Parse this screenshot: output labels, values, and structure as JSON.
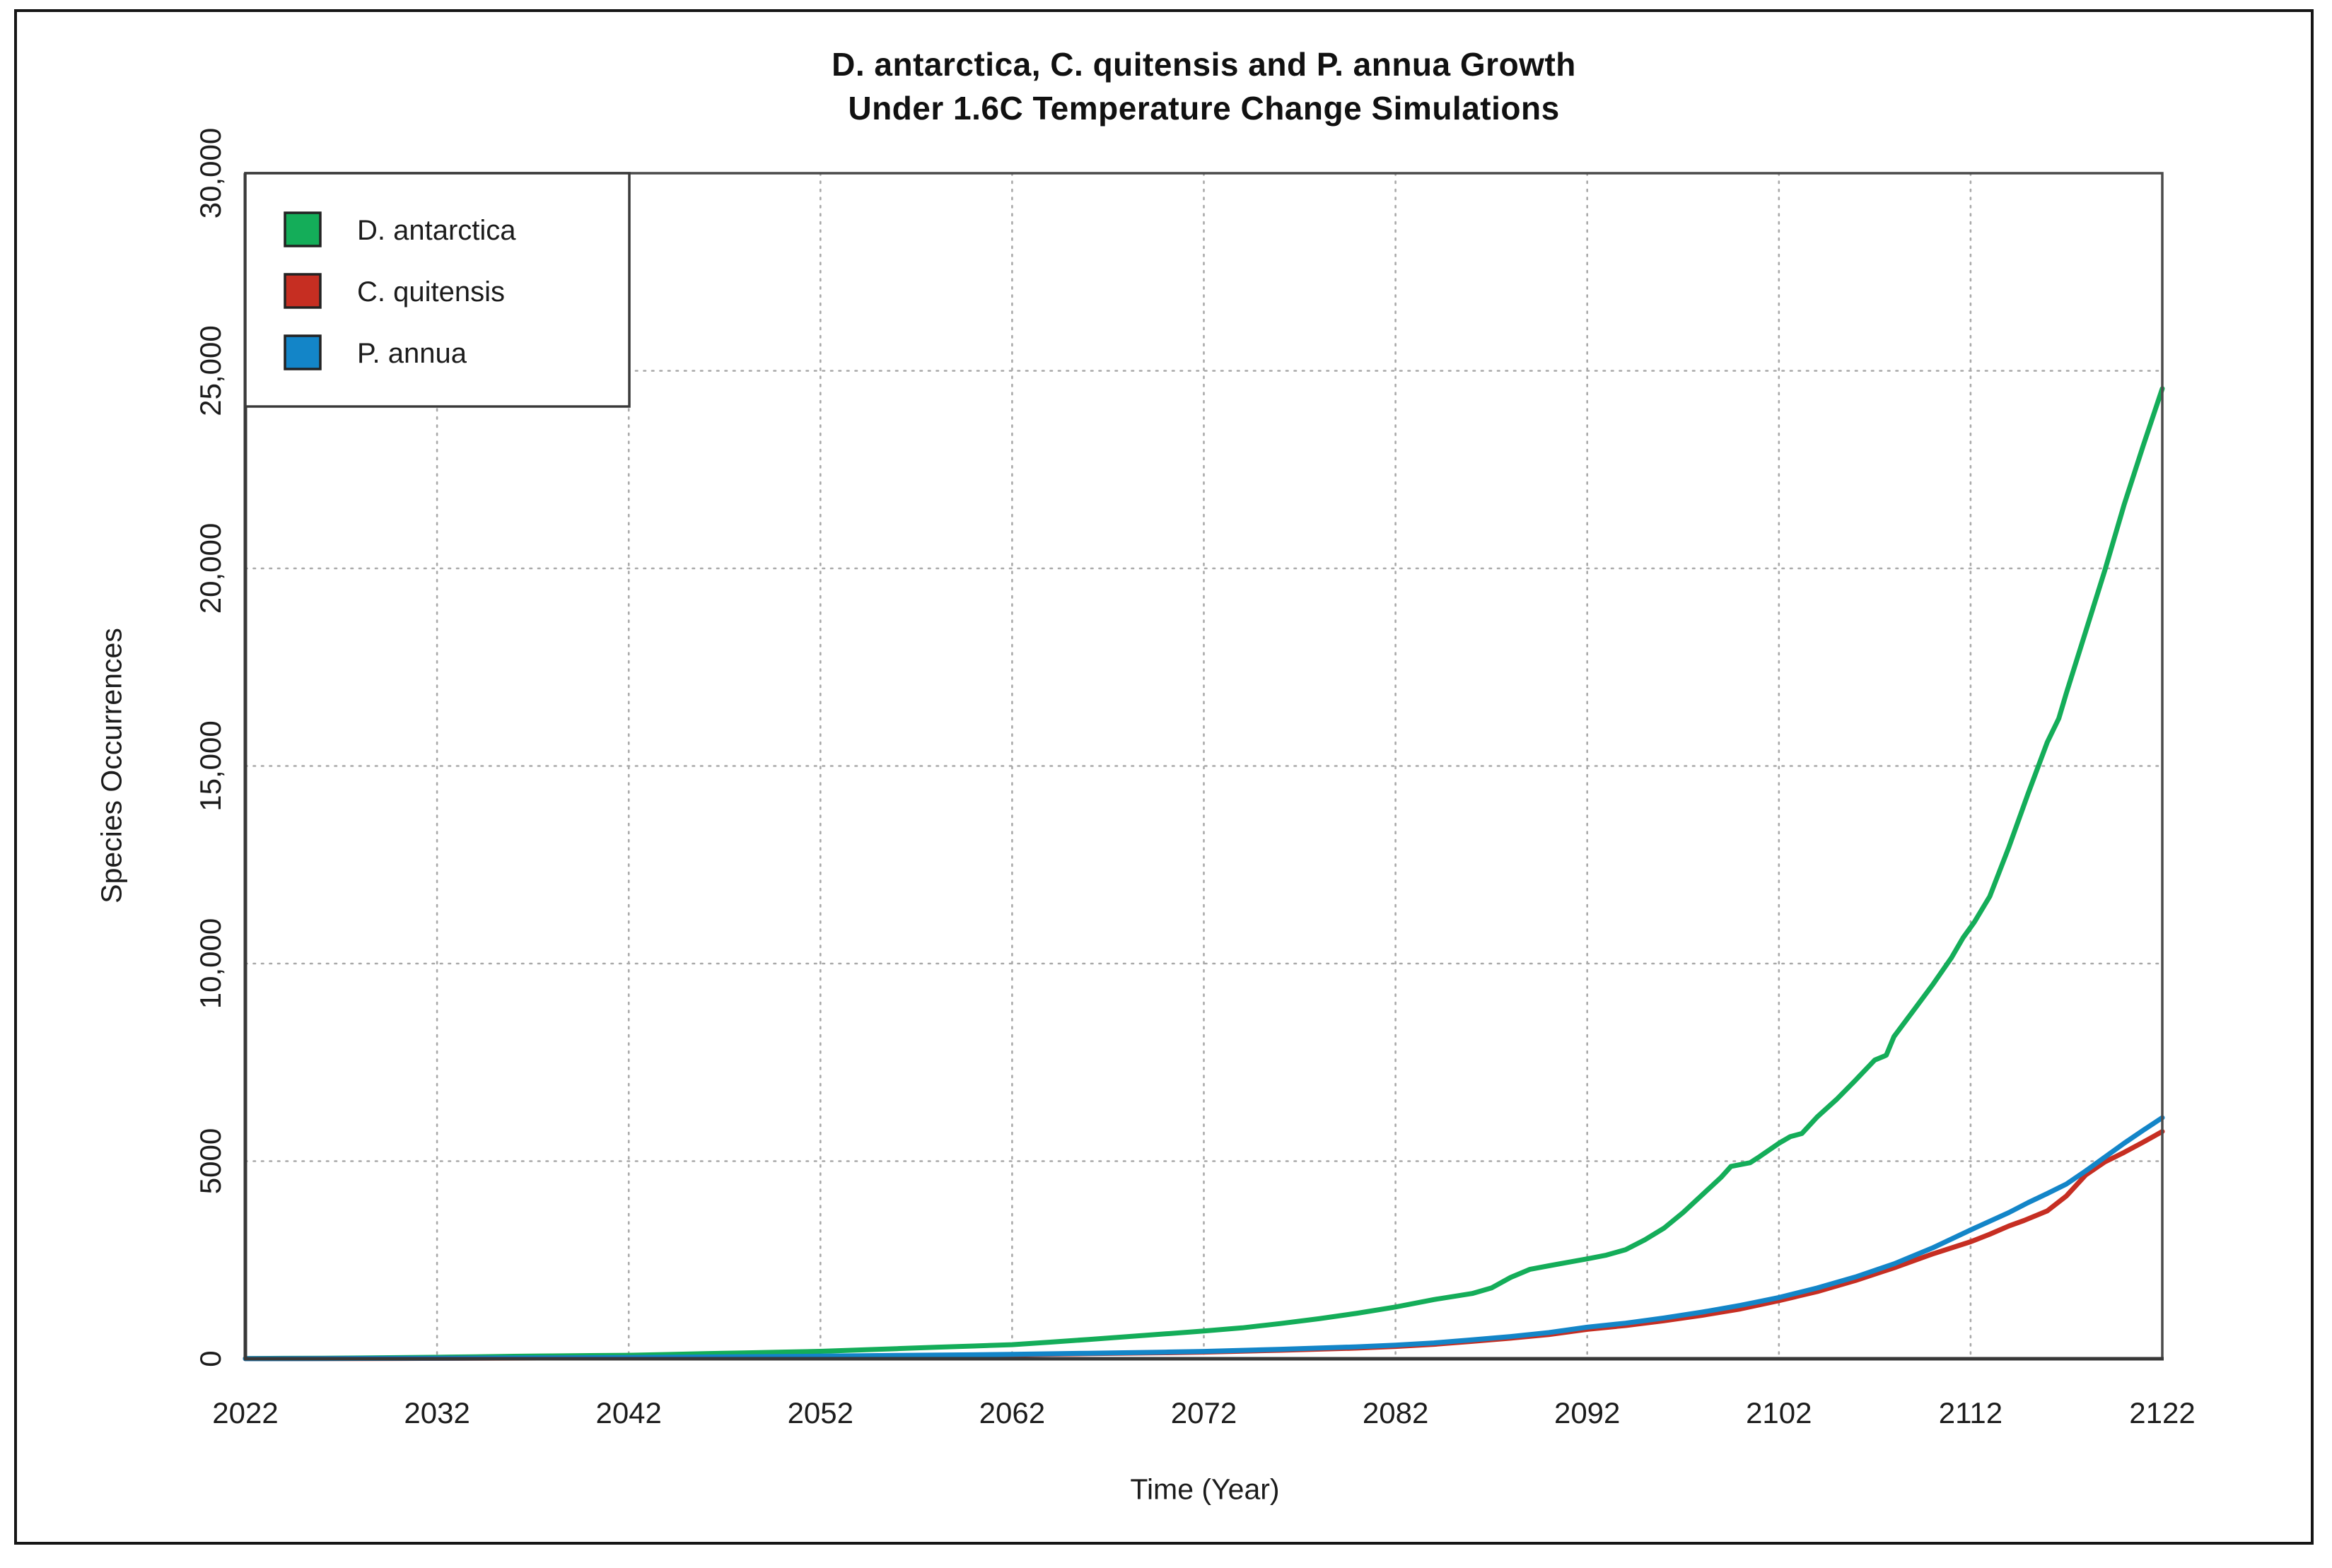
{
  "page": {
    "background": "#FFFFFF",
    "outer_border_color": "#161616"
  },
  "chart_data": {
    "type": "line",
    "title_line1": "D. antarctica, C. quitensis and P. annua Growth",
    "title_line2": "Under 1.6C Temperature Change Simulations",
    "xlabel": "Time (Year)",
    "ylabel": "Species Occurrences",
    "xlim": [
      2022,
      2122
    ],
    "ylim": [
      0,
      30000
    ],
    "grid": true,
    "grid_style": "dotted",
    "legend_position": "top-left",
    "x_ticks": [
      {
        "value": 2022,
        "label": "2022"
      },
      {
        "value": 2032,
        "label": "2032"
      },
      {
        "value": 2042,
        "label": "2042"
      },
      {
        "value": 2052,
        "label": "2052"
      },
      {
        "value": 2062,
        "label": "2062"
      },
      {
        "value": 2072,
        "label": "2072"
      },
      {
        "value": 2082,
        "label": "2082"
      },
      {
        "value": 2092,
        "label": "2092"
      },
      {
        "value": 2102,
        "label": "2102"
      },
      {
        "value": 2112,
        "label": "2112"
      },
      {
        "value": 2122,
        "label": "2122"
      }
    ],
    "y_ticks": [
      {
        "value": 0,
        "label": "0"
      },
      {
        "value": 5000,
        "label": "5000"
      },
      {
        "value": 10000,
        "label": "10,000"
      },
      {
        "value": 15000,
        "label": "15,000"
      },
      {
        "value": 20000,
        "label": "20,000"
      },
      {
        "value": 25000,
        "label": "25,000"
      },
      {
        "value": 30000,
        "label": "30,000"
      }
    ],
    "colors": {
      "grid": "#A9A9A9",
      "frame": "#4A4A4A",
      "axis": "#383838",
      "text": "#1C1C1C",
      "legend_border": "#3A3A3A",
      "swatch_border": "#222222",
      "background": "#FFFFFF"
    },
    "series": [
      {
        "name": "D. antarctica",
        "color": "#14AD59",
        "points": [
          [
            2022,
            5
          ],
          [
            2024,
            10
          ],
          [
            2026,
            15
          ],
          [
            2028,
            20
          ],
          [
            2030,
            28
          ],
          [
            2032,
            38
          ],
          [
            2034,
            50
          ],
          [
            2036,
            62
          ],
          [
            2038,
            72
          ],
          [
            2040,
            80
          ],
          [
            2042,
            88
          ],
          [
            2044,
            108
          ],
          [
            2046,
            128
          ],
          [
            2048,
            148
          ],
          [
            2050,
            168
          ],
          [
            2052,
            188
          ],
          [
            2054,
            222
          ],
          [
            2056,
            256
          ],
          [
            2058,
            290
          ],
          [
            2060,
            322
          ],
          [
            2062,
            356
          ],
          [
            2064,
            420
          ],
          [
            2066,
            488
          ],
          [
            2068,
            560
          ],
          [
            2070,
            630
          ],
          [
            2072,
            702
          ],
          [
            2074,
            782
          ],
          [
            2076,
            890
          ],
          [
            2078,
            1012
          ],
          [
            2080,
            1152
          ],
          [
            2082,
            1310
          ],
          [
            2084,
            1498
          ],
          [
            2086,
            1652
          ],
          [
            2087,
            1790
          ],
          [
            2088,
            2058
          ],
          [
            2089,
            2262
          ],
          [
            2090,
            2352
          ],
          [
            2091,
            2440
          ],
          [
            2092,
            2528
          ],
          [
            2093,
            2622
          ],
          [
            2094,
            2760
          ],
          [
            2095,
            3008
          ],
          [
            2096,
            3302
          ],
          [
            2097,
            3700
          ],
          [
            2098,
            4148
          ],
          [
            2099,
            4600
          ],
          [
            2099.5,
            4868
          ],
          [
            2100.5,
            4960
          ],
          [
            2101,
            5118
          ],
          [
            2102,
            5452
          ],
          [
            2102.6,
            5622
          ],
          [
            2103.2,
            5700
          ],
          [
            2104,
            6120
          ],
          [
            2105,
            6558
          ],
          [
            2106,
            7050
          ],
          [
            2107,
            7558
          ],
          [
            2107.6,
            7680
          ],
          [
            2108,
            8150
          ],
          [
            2109,
            8800
          ],
          [
            2110,
            9450
          ],
          [
            2111,
            10148
          ],
          [
            2111.6,
            10650
          ],
          [
            2112.2,
            11052
          ],
          [
            2113,
            11700
          ],
          [
            2114,
            12950
          ],
          [
            2115,
            14300
          ],
          [
            2116,
            15600
          ],
          [
            2116.6,
            16200
          ],
          [
            2117,
            16850
          ],
          [
            2118,
            18400
          ],
          [
            2119,
            19948
          ],
          [
            2120,
            21600
          ],
          [
            2121,
            23100
          ],
          [
            2122,
            24550
          ]
        ]
      },
      {
        "name": "C. quitensis",
        "color": "#C62E22",
        "points": [
          [
            2022,
            2
          ],
          [
            2026,
            4
          ],
          [
            2030,
            8
          ],
          [
            2034,
            13
          ],
          [
            2038,
            20
          ],
          [
            2042,
            28
          ],
          [
            2046,
            38
          ],
          [
            2050,
            50
          ],
          [
            2052,
            58
          ],
          [
            2056,
            74
          ],
          [
            2060,
            90
          ],
          [
            2062,
            102
          ],
          [
            2066,
            128
          ],
          [
            2070,
            152
          ],
          [
            2072,
            168
          ],
          [
            2076,
            215
          ],
          [
            2080,
            270
          ],
          [
            2082,
            312
          ],
          [
            2084,
            365
          ],
          [
            2086,
            440
          ],
          [
            2088,
            520
          ],
          [
            2090,
            612
          ],
          [
            2092,
            745
          ],
          [
            2094,
            840
          ],
          [
            2096,
            960
          ],
          [
            2098,
            1100
          ],
          [
            2100,
            1262
          ],
          [
            2102,
            1470
          ],
          [
            2104,
            1700
          ],
          [
            2106,
            1980
          ],
          [
            2108,
            2300
          ],
          [
            2110,
            2650
          ],
          [
            2112,
            2960
          ],
          [
            2113,
            3150
          ],
          [
            2114,
            3360
          ],
          [
            2114.8,
            3500
          ],
          [
            2116,
            3740
          ],
          [
            2117,
            4120
          ],
          [
            2118,
            4650
          ],
          [
            2119,
            4980
          ],
          [
            2120,
            5220
          ],
          [
            2121,
            5480
          ],
          [
            2122,
            5750
          ]
        ]
      },
      {
        "name": "P. annua",
        "color": "#1385C8",
        "points": [
          [
            2022,
            2
          ],
          [
            2026,
            5
          ],
          [
            2030,
            10
          ],
          [
            2034,
            16
          ],
          [
            2038,
            24
          ],
          [
            2042,
            33
          ],
          [
            2046,
            45
          ],
          [
            2050,
            58
          ],
          [
            2052,
            66
          ],
          [
            2056,
            84
          ],
          [
            2060,
            100
          ],
          [
            2062,
            112
          ],
          [
            2066,
            140
          ],
          [
            2070,
            168
          ],
          [
            2072,
            186
          ],
          [
            2076,
            240
          ],
          [
            2080,
            302
          ],
          [
            2082,
            345
          ],
          [
            2084,
            400
          ],
          [
            2086,
            480
          ],
          [
            2088,
            562
          ],
          [
            2090,
            662
          ],
          [
            2092,
            800
          ],
          [
            2094,
            900
          ],
          [
            2096,
            1030
          ],
          [
            2098,
            1180
          ],
          [
            2100,
            1352
          ],
          [
            2102,
            1550
          ],
          [
            2104,
            1790
          ],
          [
            2106,
            2070
          ],
          [
            2108,
            2400
          ],
          [
            2110,
            2802
          ],
          [
            2112,
            3260
          ],
          [
            2114,
            3700
          ],
          [
            2115,
            3950
          ],
          [
            2116,
            4180
          ],
          [
            2117,
            4420
          ],
          [
            2118,
            4752
          ],
          [
            2119,
            5100
          ],
          [
            2120,
            5450
          ],
          [
            2121,
            5780
          ],
          [
            2122,
            6100
          ]
        ]
      }
    ]
  }
}
